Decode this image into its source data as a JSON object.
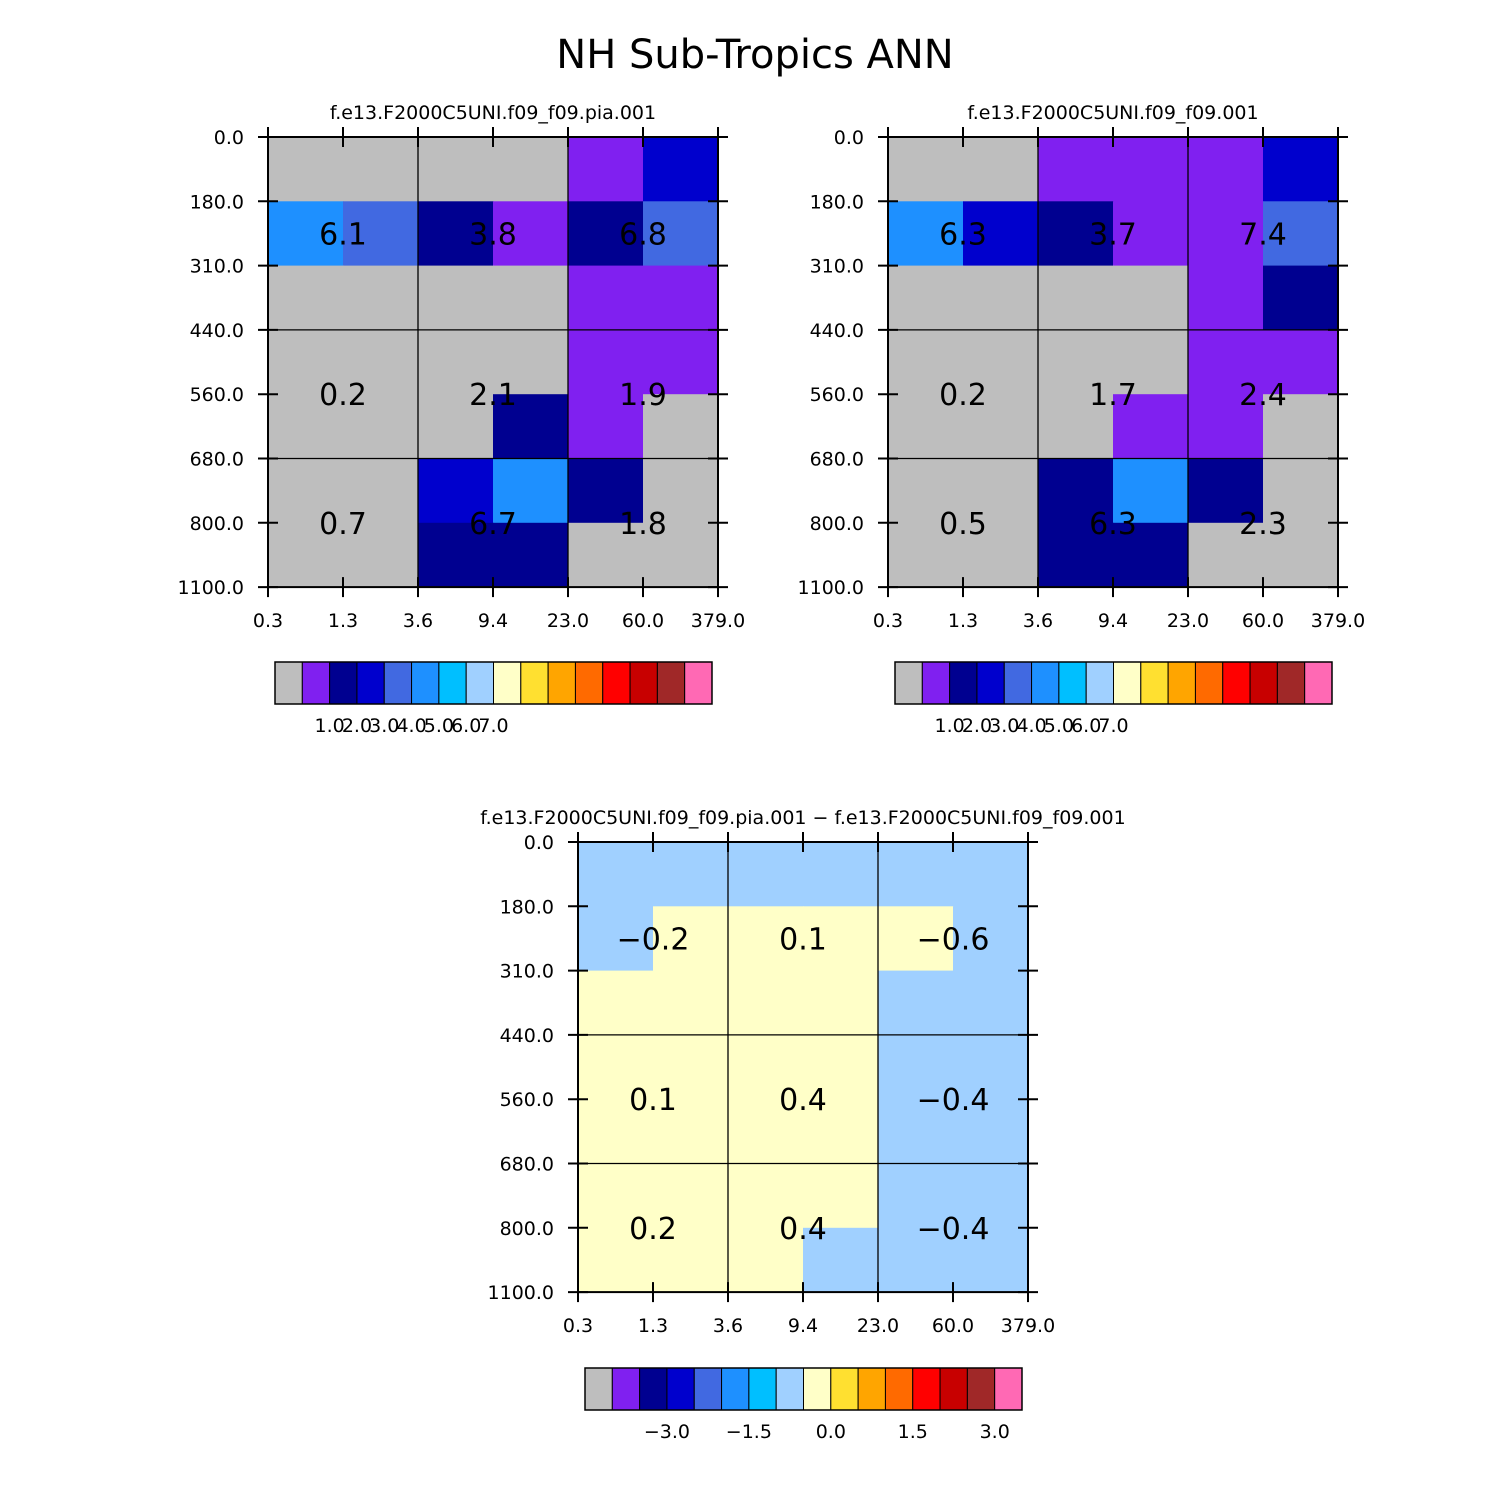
{
  "figure_title": "NH Sub-Tropics ANN",
  "colors": {
    "background": "#ffffff",
    "palette": [
      "#bebebe",
      "#8020f0",
      "#000090",
      "#0000cd",
      "#4169e1",
      "#1e90ff",
      "#00bfff",
      "#a0d0ff",
      "#ffffc8",
      "#ffe030",
      "#ffa500",
      "#ff6a00",
      "#ff0000",
      "#c80000",
      "#a02828",
      "#ff69b4"
    ]
  },
  "chart_data": [
    {
      "type": "heatmap",
      "title": "f.e13.F2000C5UNI.f09_f09.pia.001",
      "x_ticks": [
        "0.3",
        "1.3",
        "3.6",
        "9.4",
        "23.0",
        "60.0",
        "379.0"
      ],
      "y_ticks": [
        "0.0",
        "180.0",
        "310.0",
        "440.0",
        "560.0",
        "680.0",
        "800.0",
        "1100.0"
      ],
      "cell_colors": [
        [
          0,
          0,
          0,
          0,
          1,
          3
        ],
        [
          5,
          4,
          2,
          1,
          2,
          4
        ],
        [
          0,
          0,
          0,
          0,
          1,
          1
        ],
        [
          0,
          0,
          0,
          0,
          1,
          1
        ],
        [
          0,
          0,
          0,
          2,
          1,
          0
        ],
        [
          0,
          0,
          3,
          5,
          2,
          0
        ],
        [
          0,
          0,
          2,
          2,
          0,
          0
        ]
      ],
      "block_values": [
        [
          "6.1",
          "3.8",
          "6.8"
        ],
        [
          "0.2",
          "2.1",
          "1.9"
        ],
        [
          "0.7",
          "6.7",
          "1.8"
        ]
      ],
      "colorbar": {
        "labels": [
          "1.0",
          "2.0",
          "3.0",
          "4.0",
          "5.0",
          "6.0",
          "7.0"
        ],
        "label_start_box": 1
      }
    },
    {
      "type": "heatmap",
      "title": "f.e13.F2000C5UNI.f09_f09.001",
      "x_ticks": [
        "0.3",
        "1.3",
        "3.6",
        "9.4",
        "23.0",
        "60.0",
        "379.0"
      ],
      "y_ticks": [
        "0.0",
        "180.0",
        "310.0",
        "440.0",
        "560.0",
        "680.0",
        "800.0",
        "1100.0"
      ],
      "cell_colors": [
        [
          0,
          0,
          1,
          1,
          1,
          3
        ],
        [
          5,
          3,
          2,
          1,
          1,
          4
        ],
        [
          0,
          0,
          0,
          0,
          1,
          2
        ],
        [
          0,
          0,
          0,
          0,
          1,
          1
        ],
        [
          0,
          0,
          0,
          1,
          1,
          0
        ],
        [
          0,
          0,
          2,
          5,
          2,
          0
        ],
        [
          0,
          0,
          2,
          2,
          0,
          0
        ]
      ],
      "block_values": [
        [
          "6.3",
          "3.7",
          "7.4"
        ],
        [
          "0.2",
          "1.7",
          "2.4"
        ],
        [
          "0.5",
          "6.3",
          "2.3"
        ]
      ],
      "colorbar": {
        "labels": [
          "1.0",
          "2.0",
          "3.0",
          "4.0",
          "5.0",
          "6.0",
          "7.0"
        ],
        "label_start_box": 1
      }
    },
    {
      "type": "heatmap",
      "title": "f.e13.F2000C5UNI.f09_f09.pia.001 − f.e13.F2000C5UNI.f09_f09.001",
      "x_ticks": [
        "0.3",
        "1.3",
        "3.6",
        "9.4",
        "23.0",
        "60.0",
        "379.0"
      ],
      "y_ticks": [
        "0.0",
        "180.0",
        "310.0",
        "440.0",
        "560.0",
        "680.0",
        "800.0",
        "1100.0"
      ],
      "cell_colors": [
        [
          7,
          7,
          7,
          7,
          7,
          7
        ],
        [
          7,
          8,
          8,
          8,
          8,
          7
        ],
        [
          8,
          8,
          8,
          8,
          7,
          7
        ],
        [
          8,
          8,
          8,
          8,
          7,
          7
        ],
        [
          8,
          8,
          8,
          8,
          7,
          7
        ],
        [
          8,
          8,
          8,
          8,
          7,
          7
        ],
        [
          8,
          8,
          8,
          7,
          7,
          7
        ]
      ],
      "block_values": [
        [
          "−0.2",
          "0.1",
          "−0.6"
        ],
        [
          "0.1",
          "0.4",
          "−0.4"
        ],
        [
          "0.2",
          "0.4",
          "−0.4"
        ]
      ],
      "colorbar": {
        "labels": [
          "−3.0",
          "−1.5",
          "0.0",
          "1.5",
          "3.0"
        ],
        "label_start_box": 2,
        "label_step": 3
      }
    }
  ]
}
